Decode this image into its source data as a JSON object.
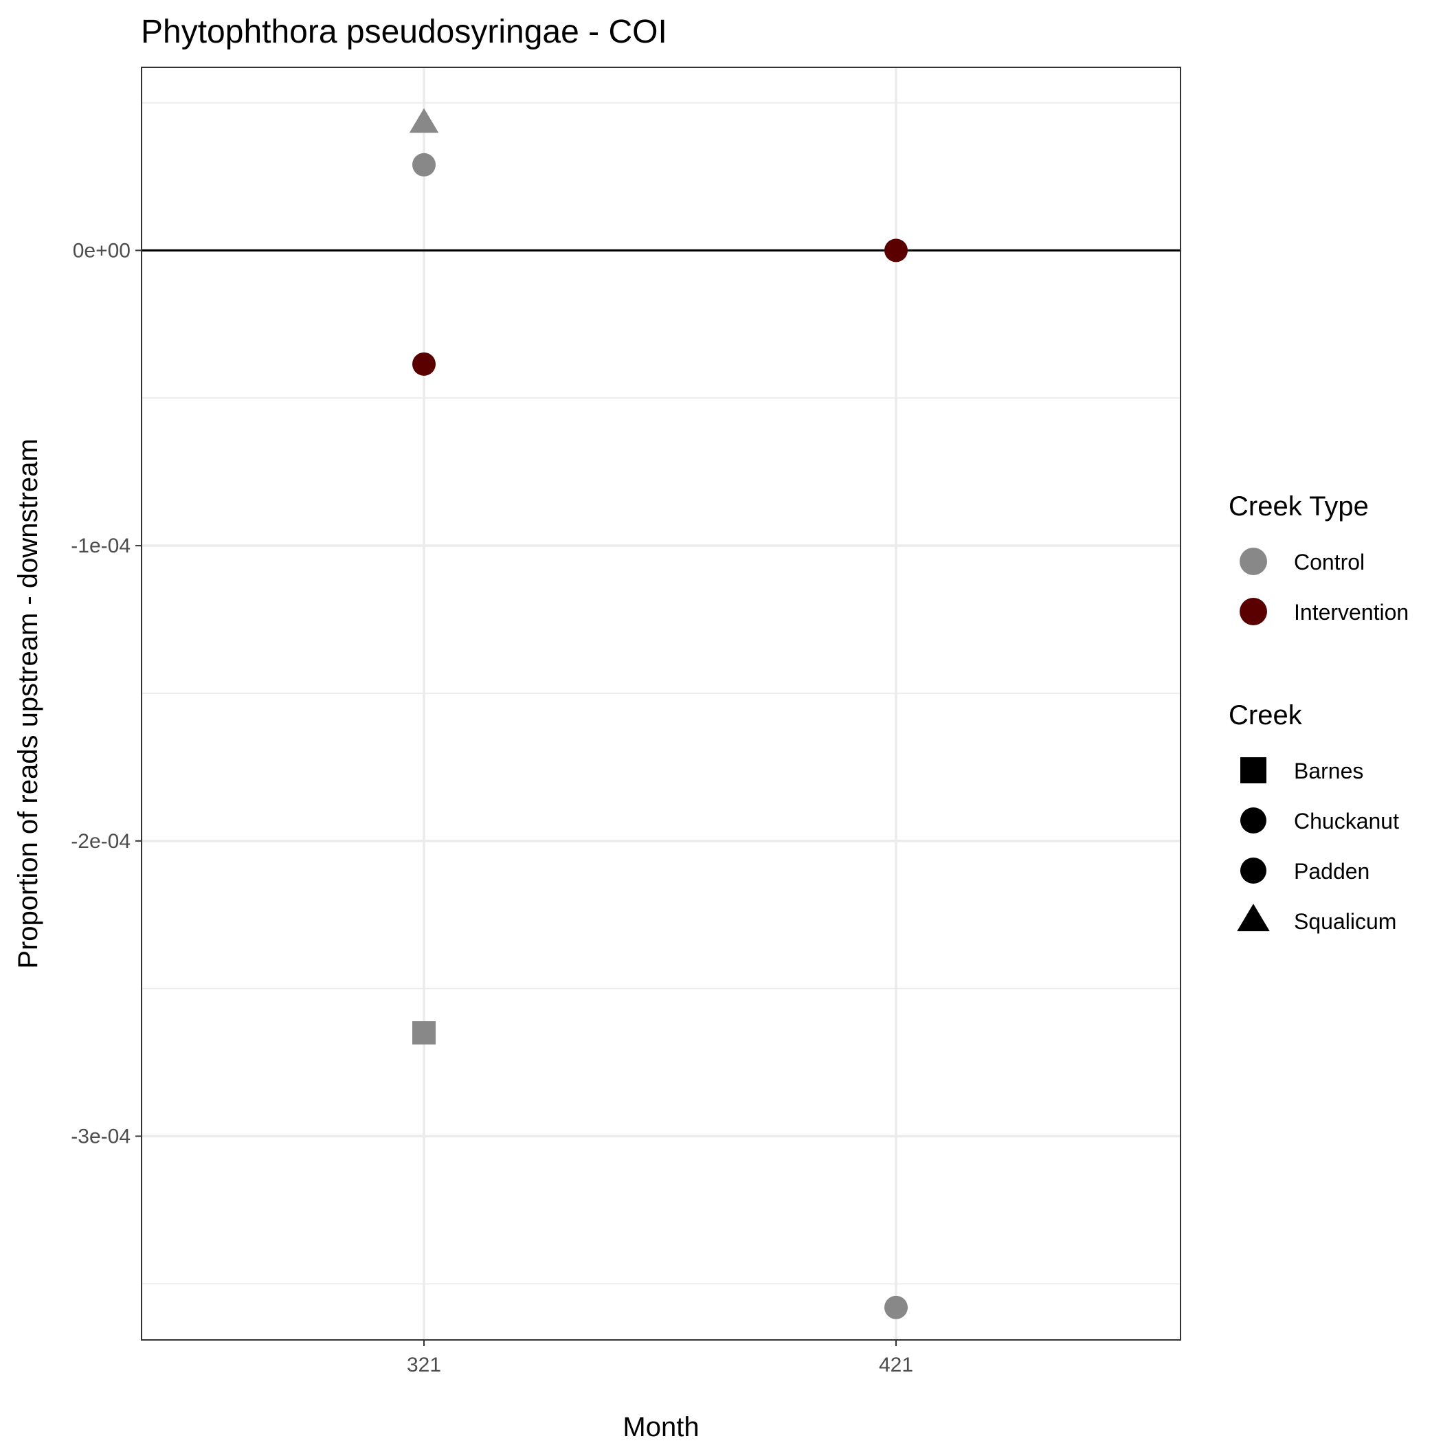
{
  "chart_data": {
    "type": "scatter",
    "title": "Phytophthora pseudosyringae - COI",
    "xlabel": "Month",
    "ylabel": "Proportion of reads upstream - downstream",
    "x_categories": [
      "321",
      "421"
    ],
    "ylim": [
      -0.000369,
      6.2e-05
    ],
    "y_ticks": [
      0,
      -0.0001,
      -0.0002,
      -0.0003
    ],
    "y_tick_labels": [
      "0e+00",
      "-1e-04",
      "-2e-04",
      "-3e-04"
    ],
    "reference_line_y": 0,
    "grid": true,
    "colors": {
      "Control": "#888888",
      "Intervention": "#5a0000"
    },
    "points": [
      {
        "month": "321",
        "creek": "Squalicum",
        "creek_type": "Control",
        "y": 4.3e-05
      },
      {
        "month": "321",
        "creek": "Chuckanut",
        "creek_type": "Control",
        "y": 2.9e-05
      },
      {
        "month": "321",
        "creek": "Padden",
        "creek_type": "Intervention",
        "y": -3.85e-05
      },
      {
        "month": "321",
        "creek": "Barnes",
        "creek_type": "Control",
        "y": -0.000265
      },
      {
        "month": "421",
        "creek": "Padden",
        "creek_type": "Intervention",
        "y": 0
      },
      {
        "month": "421",
        "creek": "Chuckanut",
        "creek_type": "Control",
        "y": -0.000358
      }
    ],
    "legend": {
      "position": "right",
      "creek_type": {
        "title": "Creek Type",
        "items": [
          {
            "label": "Control",
            "color": "#888888"
          },
          {
            "label": "Intervention",
            "color": "#5a0000"
          }
        ]
      },
      "creek": {
        "title": "Creek",
        "items": [
          {
            "label": "Barnes",
            "shape": "square"
          },
          {
            "label": "Chuckanut",
            "shape": "circle"
          },
          {
            "label": "Padden",
            "shape": "circle"
          },
          {
            "label": "Squalicum",
            "shape": "triangle"
          }
        ]
      }
    }
  }
}
